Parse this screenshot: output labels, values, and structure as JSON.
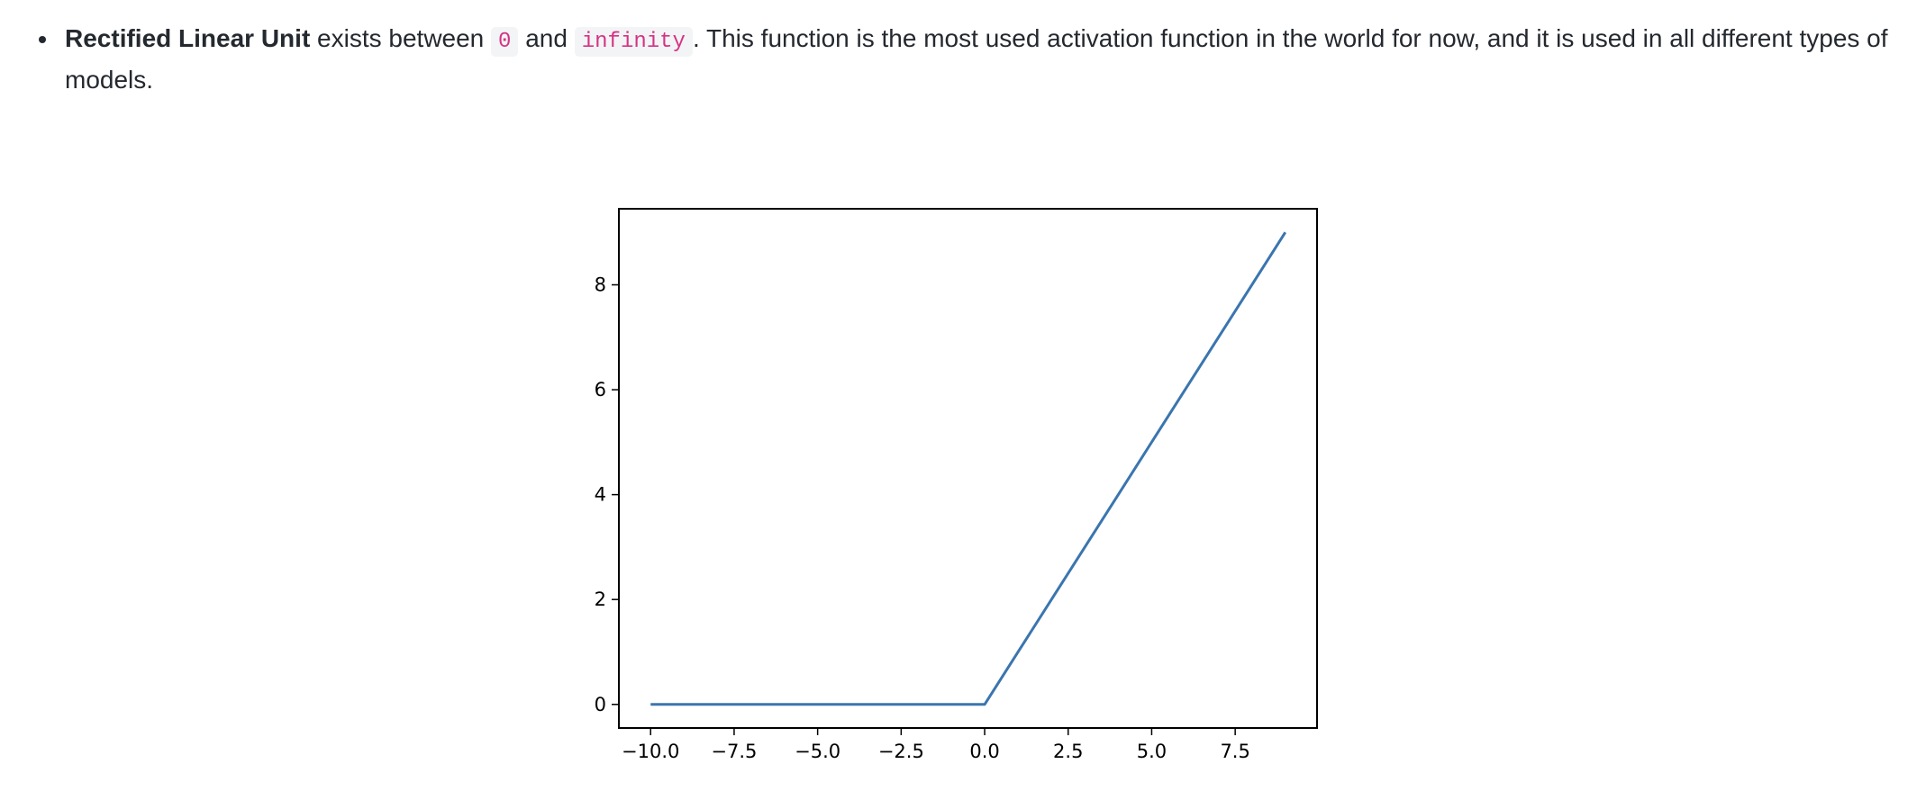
{
  "text": {
    "bold_term": "Rectified Linear Unit",
    "after_bold": " exists between ",
    "code_low": "0",
    "between_codes": " and ",
    "code_high": "infinity",
    "rest": ". This function is the most used activation function in the world for now, and it is used in all different types of models."
  },
  "chart_data": {
    "type": "line",
    "title": "",
    "xlabel": "",
    "ylabel": "",
    "xlim": [
      -10.95,
      9.95
    ],
    "ylim": [
      -0.45,
      9.45
    ],
    "xticks": [
      -10.0,
      -7.5,
      -5.0,
      -2.5,
      0.0,
      2.5,
      5.0,
      7.5
    ],
    "xtick_labels": [
      "−10.0",
      "−7.5",
      "−5.0",
      "−2.5",
      "0.0",
      "2.5",
      "5.0",
      "7.5"
    ],
    "yticks": [
      0,
      2,
      4,
      6,
      8
    ],
    "ytick_labels": [
      "0",
      "2",
      "4",
      "6",
      "8"
    ],
    "grid": false,
    "series": [
      {
        "color": "#3a75af",
        "x": [
          -10,
          -9,
          -8,
          -7,
          -6,
          -5,
          -4,
          -3,
          -2,
          -1,
          0,
          1,
          2,
          3,
          4,
          5,
          6,
          7,
          8,
          9
        ],
        "y": [
          0,
          0,
          0,
          0,
          0,
          0,
          0,
          0,
          0,
          0,
          0,
          1,
          2,
          3,
          4,
          5,
          6,
          7,
          8,
          9
        ]
      }
    ]
  }
}
